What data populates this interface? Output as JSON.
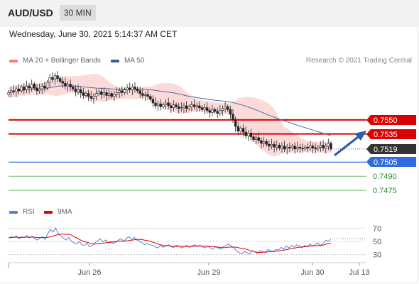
{
  "header": {
    "pair": "AUD/USD",
    "timeframe": "30 MIN"
  },
  "timestamp": "Wednesday, June 30, 2021 5:14:37 AM CET",
  "legend": {
    "ma20": "MA 20 + Bollinger Bands",
    "ma50": "MA 50",
    "rsi": "RSI",
    "ma9": "9MA"
  },
  "copyright": "Research © 2021 Trading Central",
  "colors": {
    "resistance": "#dd0000",
    "support": "#2e6bdc",
    "minor": "#6abf6a",
    "band": "#fbd3d3",
    "ma50": "#4a6fa5",
    "last": "#333333",
    "arrow": "#2b5fa8"
  },
  "chart_data": [
    {
      "type": "candlestick",
      "ylim": [
        0.7466,
        0.7602
      ],
      "x_ticks": [
        "Jun 26",
        "Jun 29",
        "Jun 30",
        "Jul 13"
      ],
      "close_series": [
        0.7579,
        0.7581,
        0.758,
        0.7583,
        0.7581,
        0.7585,
        0.7582,
        0.7586,
        0.7584,
        0.7588,
        0.7584,
        0.7581,
        0.7583,
        0.7586,
        0.7584,
        0.759,
        0.7595,
        0.7593,
        0.7597,
        0.7594,
        0.7591,
        0.7589,
        0.7586,
        0.7588,
        0.7585,
        0.7583,
        0.758,
        0.7582,
        0.7579,
        0.7576,
        0.7578,
        0.7575,
        0.7573,
        0.7575,
        0.7578,
        0.758,
        0.7577,
        0.7579,
        0.7576,
        0.7578,
        0.7575,
        0.7577,
        0.7579,
        0.7581,
        0.7579,
        0.7582,
        0.7584,
        0.7582,
        0.7585,
        0.7583,
        0.7581,
        0.7578,
        0.7576,
        0.7577,
        0.7575,
        0.7572,
        0.7568,
        0.7565,
        0.7567,
        0.7564,
        0.7566,
        0.7568,
        0.7565,
        0.7563,
        0.7566,
        0.7564,
        0.7562,
        0.7563,
        0.7565,
        0.7562,
        0.7564,
        0.7566,
        0.7564,
        0.7565,
        0.7563,
        0.7561,
        0.7563,
        0.756,
        0.7558,
        0.7561,
        0.7559,
        0.7557,
        0.756,
        0.7562,
        0.7564,
        0.7561,
        0.7556,
        0.755,
        0.7543,
        0.7538,
        0.7541,
        0.7537,
        0.7533,
        0.7536,
        0.7532,
        0.7529,
        0.7531,
        0.7528,
        0.7525,
        0.7527,
        0.7524,
        0.7522,
        0.7524,
        0.7521,
        0.7523,
        0.752,
        0.7522,
        0.7519,
        0.7521,
        0.752,
        0.7522,
        0.7519,
        0.7521,
        0.752,
        0.7519,
        0.7521,
        0.752,
        0.7522,
        0.752,
        0.7519,
        0.7521,
        0.7523,
        0.752,
        0.7522,
        0.7525,
        0.7519
      ],
      "levels": [
        {
          "label": "0.7550",
          "value": 0.755,
          "kind": "resistance"
        },
        {
          "label": "0.7535",
          "value": 0.7535,
          "kind": "resistance"
        },
        {
          "label": "0.7519",
          "value": 0.7519,
          "kind": "last"
        },
        {
          "label": "0.7505",
          "value": 0.7505,
          "kind": "support"
        },
        {
          "label": "0.7490",
          "value": 0.749,
          "kind": "minor"
        },
        {
          "label": "0.7475",
          "value": 0.7475,
          "kind": "minor"
        }
      ]
    },
    {
      "type": "line",
      "ylim": [
        20,
        80
      ],
      "y_ticks": [
        "70",
        "50",
        "30"
      ],
      "rsi": [
        55,
        57,
        56,
        58,
        54,
        57,
        56,
        59,
        55,
        58,
        54,
        52,
        55,
        57,
        53,
        62,
        68,
        64,
        70,
        62,
        58,
        55,
        52,
        56,
        50,
        48,
        46,
        50,
        45,
        44,
        47,
        42,
        44,
        48,
        51,
        54,
        49,
        52,
        48,
        50,
        47,
        49,
        52,
        54,
        50,
        55,
        57,
        53,
        56,
        52,
        50,
        48,
        45,
        47,
        45,
        44,
        42,
        40,
        44,
        41,
        43,
        45,
        42,
        41,
        44,
        43,
        40,
        42,
        44,
        41,
        43,
        45,
        43,
        44,
        42,
        40,
        43,
        40,
        38,
        42,
        40,
        38,
        42,
        44,
        46,
        43,
        40,
        36,
        33,
        31,
        35,
        33,
        31,
        36,
        34,
        32,
        36,
        35,
        33,
        38,
        36,
        34,
        38,
        37,
        41,
        38,
        43,
        40,
        44,
        41,
        45,
        43,
        40,
        44,
        42,
        46,
        43,
        45,
        48,
        44,
        47,
        52,
        50,
        54
      ]
    }
  ]
}
